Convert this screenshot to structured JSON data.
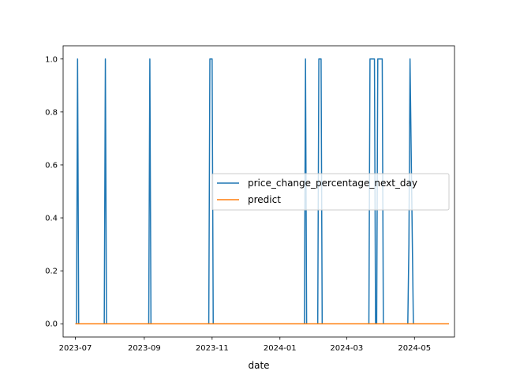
{
  "chart_data": {
    "type": "line",
    "xlabel": "date",
    "ylabel": "",
    "title": "",
    "xlim": [
      "2023-06-20",
      "2024-06-06"
    ],
    "ylim": [
      -0.05,
      1.05
    ],
    "x_ticks": [
      "2023-07-01",
      "2023-09-01",
      "2023-11-01",
      "2024-01-01",
      "2024-03-01",
      "2024-05-01"
    ],
    "x_tick_labels": [
      "2023-07",
      "2023-09",
      "2023-11",
      "2024-01",
      "2024-03",
      "2024-05"
    ],
    "y_ticks": [
      0.0,
      0.2,
      0.4,
      0.6,
      0.8,
      1.0
    ],
    "y_tick_labels": [
      "0.0",
      "0.2",
      "0.4",
      "0.6",
      "0.8",
      "1.0"
    ],
    "grid": false,
    "legend_position": "center-right",
    "series": [
      {
        "name": "price_change_percentage_next_day",
        "color": "#1f77b4",
        "x": [
          "2023-07-01",
          "2023-07-02",
          "2023-07-03",
          "2023-07-04",
          "2023-07-27",
          "2023-07-28",
          "2023-07-29",
          "2023-09-05",
          "2023-09-06",
          "2023-09-07",
          "2023-10-29",
          "2023-10-30",
          "2023-10-31",
          "2023-11-01",
          "2023-11-02",
          "2024-01-23",
          "2024-01-24",
          "2024-01-25",
          "2024-02-04",
          "2024-02-05",
          "2024-02-06",
          "2024-02-07",
          "2024-02-08",
          "2024-03-21",
          "2024-03-22",
          "2024-03-26",
          "2024-03-27",
          "2024-03-28",
          "2024-03-29",
          "2024-04-02",
          "2024-04-03",
          "2024-04-25",
          "2024-04-26",
          "2024-04-27",
          "2024-04-30",
          "2024-06-01"
        ],
        "values": [
          0,
          0,
          1,
          0,
          0,
          1,
          0,
          0,
          1,
          0,
          0,
          1,
          1,
          1,
          0,
          0,
          1,
          0,
          0,
          1,
          1,
          1,
          0,
          0,
          1,
          1,
          0,
          0,
          1,
          1,
          0,
          0,
          0.3,
          1,
          0,
          0
        ]
      },
      {
        "name": "predict",
        "color": "#ff7f0e",
        "x": [
          "2023-07-01",
          "2024-06-01"
        ],
        "values": [
          0,
          0
        ]
      }
    ]
  }
}
